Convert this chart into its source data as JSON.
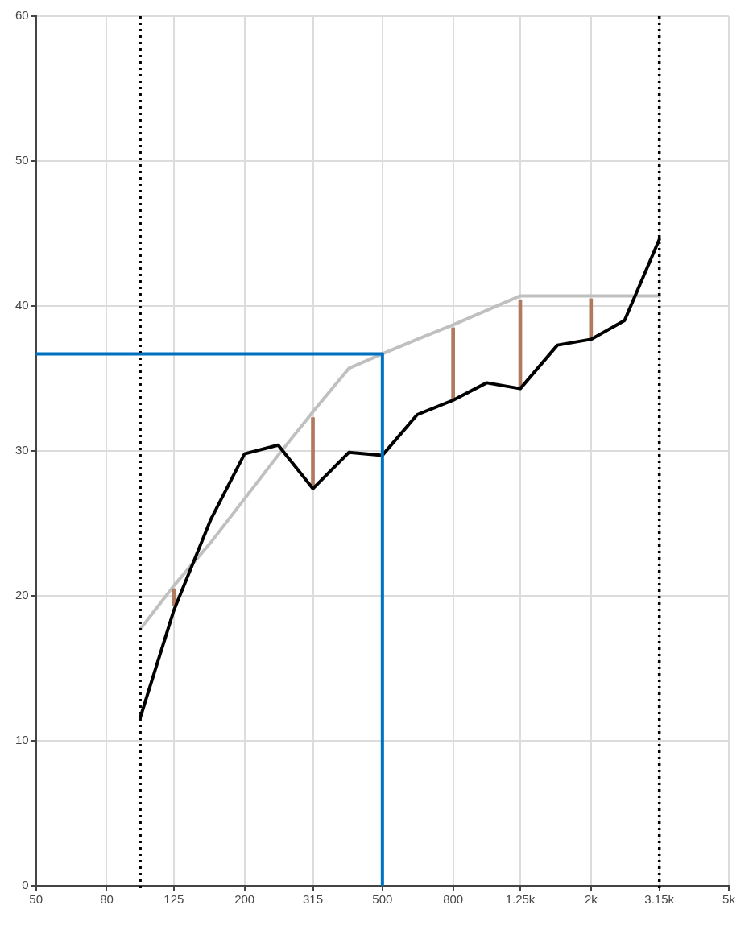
{
  "chart_data": {
    "type": "line",
    "log": "x",
    "xlim": [
      50,
      5000
    ],
    "xticks": [
      50,
      80,
      125,
      200,
      315,
      500,
      800,
      {
        "value": 1250,
        "label": "1.25k"
      },
      {
        "value": 2000,
        "label": "2k"
      },
      {
        "value": 3150,
        "label": "3.15k"
      },
      {
        "value": 5000,
        "label": "5k"
      }
    ],
    "ylim": [
      0,
      60
    ],
    "yticks": [
      0,
      10,
      20,
      30,
      40,
      50,
      60
    ],
    "grid": true,
    "legend": false,
    "marker": "none",
    "line_style": "solid",
    "series": [
      {
        "color": "#c0c0c0",
        "x": [
          100,
          125,
          160,
          200,
          250,
          315,
          400,
          500,
          630,
          800,
          1000,
          1250,
          1600,
          2000,
          2500,
          3150
        ],
        "values": [
          17.7,
          20.7,
          23.7,
          26.7,
          29.7,
          32.7,
          35.7,
          36.7,
          37.7,
          38.7,
          39.7,
          40.7,
          40.7,
          40.7,
          40.7,
          40.7
        ]
      },
      {
        "type": "bar",
        "color": "#b07a5e",
        "x": [
          125,
          315,
          800,
          1250,
          2000
        ],
        "base": [
          19.3,
          27.4,
          33.6,
          34.4,
          37.7
        ],
        "values": [
          1.2,
          4.9,
          4.9,
          6.0,
          2.8
        ]
      },
      {
        "color": "#000000",
        "x": [
          100,
          125,
          160,
          200,
          250,
          315,
          400,
          500,
          630,
          800,
          1000,
          1250,
          1600,
          2000,
          2500,
          3150
        ],
        "values": [
          11.6,
          19.0,
          25.3,
          29.8,
          30.4,
          27.4,
          29.9,
          29.7,
          32.5,
          33.5,
          34.7,
          34.3,
          37.3,
          37.7,
          39.0,
          44.6
        ]
      },
      {
        "color": "#0070c0",
        "x": [
          50,
          500,
          500
        ],
        "values": [
          36.7,
          36.7,
          0
        ]
      }
    ],
    "ref_lines": [
      {
        "axis": "x",
        "value": 100,
        "color": "#000000",
        "line_style": "dotted"
      },
      {
        "axis": "x",
        "value": 3150,
        "color": "#000000",
        "line_style": "dotted"
      }
    ]
  }
}
